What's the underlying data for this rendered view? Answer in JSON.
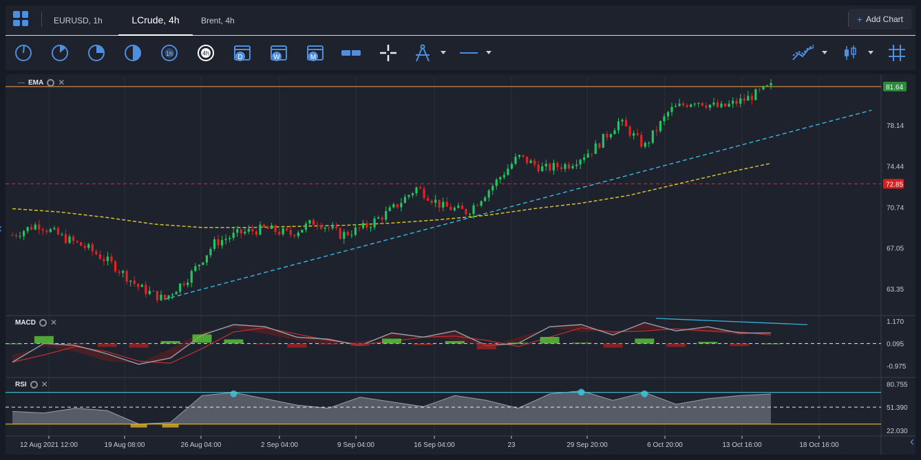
{
  "tabs": [
    {
      "label": "EURUSD, 1h",
      "active": false
    },
    {
      "label": "LCrude, 4h",
      "active": true
    },
    {
      "label": "Brent, 4h",
      "active": false
    }
  ],
  "add_chart": {
    "label": "Add Chart",
    "icon": "plus-icon"
  },
  "toolbar": {
    "intervals": [
      {
        "name": "interval-tick-icon"
      },
      {
        "name": "interval-1m-icon"
      },
      {
        "name": "interval-15m-icon"
      },
      {
        "name": "interval-30m-icon"
      },
      {
        "label": "1h"
      },
      {
        "label": "4h",
        "selected": true
      },
      {
        "label": "D"
      },
      {
        "label": "W"
      },
      {
        "label": "M"
      }
    ],
    "icons": [
      "range-icon",
      "crosshair-icon",
      "drawing-compass-icon",
      "line-style-icon",
      "chart-type-line-icon",
      "candle-icon",
      "grid-icon"
    ]
  },
  "panes": {
    "main": {
      "label": "EMA"
    },
    "macd": {
      "label": "MACD"
    },
    "rsi": {
      "label": "RSI"
    }
  },
  "price_axis": {
    "main_ticks": [
      "78.14",
      "74.44",
      "70.74",
      "67.05",
      "63.35"
    ],
    "current_price": "81.64",
    "level_price": "72.85",
    "macd_ticks": [
      "1.170",
      "0.095",
      "-0.975"
    ],
    "rsi_ticks": [
      "80.755",
      "51.390",
      "22.030"
    ]
  },
  "time_axis": [
    "12 Aug 2021 12:00",
    "19 Aug 08:00",
    "26 Aug 04:00",
    "2 Sep 04:00",
    "9 Sep 04:00",
    "16 Sep 04:00",
    "23",
    "29 Sep 20:00",
    "6 Oct 20:00",
    "13 Oct 16:00",
    "18 Oct 16:00"
  ],
  "colors": {
    "accent": "#4f8fe0",
    "up": "#22c55e",
    "down": "#e02424",
    "current_price_badge": "#2e8b3e",
    "level_line": "#e02424",
    "trendline": "#36b3d9",
    "ema": "#d9c229",
    "top_line": "#b07a3a"
  },
  "chart_data": {
    "type": "candlestick",
    "symbol": "LCrude, 4h",
    "price_range": [
      61.0,
      82.5
    ],
    "close_path": [
      {
        "t": "12 Aug 12:00",
        "p": 68.2
      },
      {
        "t": "14 Aug",
        "p": 69.2
      },
      {
        "t": "16 Aug",
        "p": 68.0
      },
      {
        "t": "17 Aug",
        "p": 67.0
      },
      {
        "t": "18 Aug",
        "p": 65.5
      },
      {
        "t": "19 Aug 08:00",
        "p": 63.5
      },
      {
        "t": "20 Aug",
        "p": 62.4
      },
      {
        "t": "21 Aug",
        "p": 64.5
      },
      {
        "t": "23 Aug",
        "p": 67.5
      },
      {
        "t": "26 Aug 04:00",
        "p": 68.4
      },
      {
        "t": "30 Aug",
        "p": 68.8
      },
      {
        "t": "2 Sep 04:00",
        "p": 68.3
      },
      {
        "t": "4 Sep",
        "p": 69.5
      },
      {
        "t": "7 Sep",
        "p": 68.2
      },
      {
        "t": "9 Sep 04:00",
        "p": 69.0
      },
      {
        "t": "12 Sep",
        "p": 70.5
      },
      {
        "t": "16 Sep 04:00",
        "p": 72.5
      },
      {
        "t": "19 Sep",
        "p": 70.8
      },
      {
        "t": "21 Sep",
        "p": 70.3
      },
      {
        "t": "23",
        "p": 72.7
      },
      {
        "t": "26 Sep",
        "p": 75.3
      },
      {
        "t": "28 Sep",
        "p": 74.2
      },
      {
        "t": "29 Sep 20:00",
        "p": 74.6
      },
      {
        "t": "2 Oct",
        "p": 76.0
      },
      {
        "t": "4 Oct",
        "p": 78.5
      },
      {
        "t": "6 Oct 20:00",
        "p": 76.2
      },
      {
        "t": "8 Oct",
        "p": 79.5
      },
      {
        "t": "10 Oct",
        "p": 80.4
      },
      {
        "t": "12 Oct",
        "p": 79.7
      },
      {
        "t": "13 Oct 16:00",
        "p": 80.5
      },
      {
        "t": "15 Oct",
        "p": 81.64
      }
    ],
    "ema_path": [
      70.6,
      70.3,
      69.8,
      69.2,
      68.9,
      68.9,
      69.0,
      69.1,
      69.3,
      69.6,
      70.0,
      70.6,
      71.1,
      71.8,
      72.8,
      73.8,
      74.7
    ],
    "trendline": {
      "from": {
        "t": "20 Aug",
        "p": 62.4
      },
      "to": {
        "t": "18 Oct",
        "p": 79.5
      }
    },
    "horizontal_levels": [
      81.64,
      72.85
    ],
    "macd_range": [
      -1.5,
      1.4
    ],
    "macd_values": [
      -0.8,
      0.1,
      0.0,
      -0.4,
      -0.9,
      -0.6,
      0.5,
      1.0,
      0.9,
      0.4,
      0.3,
      0.0,
      0.6,
      0.4,
      0.7,
      0.0,
      0.1,
      0.9,
      1.0,
      0.5,
      1.1,
      0.7,
      0.9,
      0.6,
      0.6
    ],
    "rsi_range": [
      15,
      88
    ],
    "rsi_values": [
      46,
      44,
      50,
      47,
      30,
      32,
      66,
      70,
      62,
      54,
      50,
      64,
      58,
      52,
      66,
      60,
      50,
      68,
      72,
      60,
      70,
      55,
      62,
      66,
      68
    ],
    "rsi_levels": [
      70,
      51.39,
      30
    ]
  }
}
